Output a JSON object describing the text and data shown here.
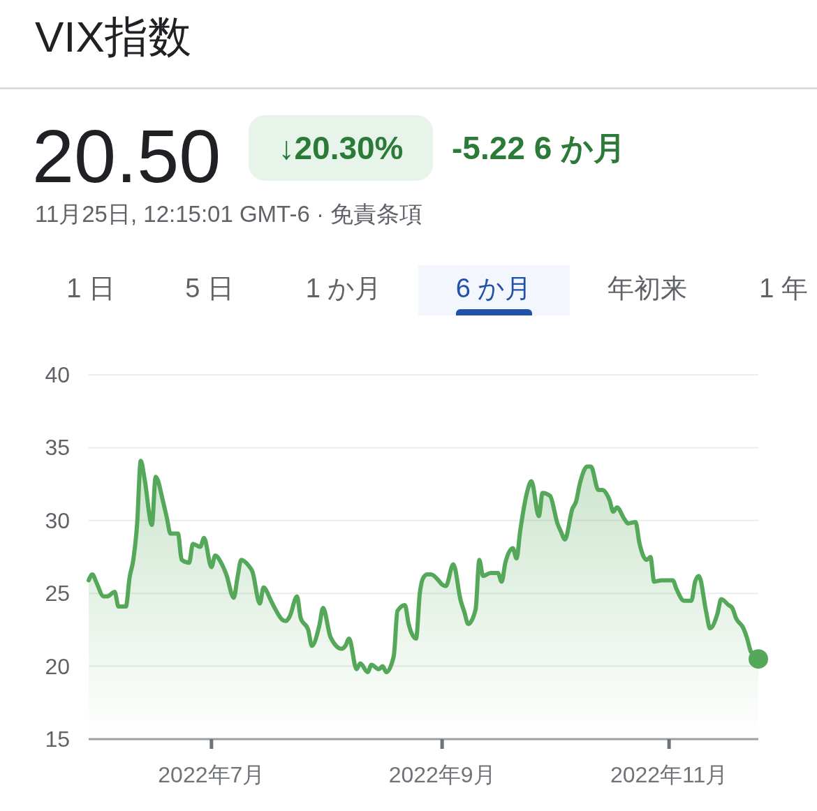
{
  "chart_data": {
    "type": "area",
    "title": "VIX指数",
    "subtitle": "11月25日, 12:15:01 GMT-6 · 免責条項",
    "annotations": [
      "20.50",
      "↓20.30%",
      "-5.22 6 か月",
      "1 日",
      "5 日",
      "1 か月",
      "6 か月",
      "年初来",
      "1 年"
    ],
    "xlim": [
      "2022-05-29",
      "2022-11-25"
    ],
    "xticks": [
      {
        "value": "2022-07-01",
        "label": "2022年7月"
      },
      {
        "value": "2022-09-01",
        "label": "2022年9月"
      },
      {
        "value": "2022-11-01",
        "label": "2022年11月"
      }
    ],
    "ylim": [
      15,
      40
    ],
    "yticks": [
      15,
      20,
      25,
      30,
      35,
      40
    ],
    "grid": "y",
    "series": [
      {
        "color": "#55a85a",
        "x": [
          "2022-05-29",
          "2022-05-30",
          "2022-05-31",
          "2022-06-02",
          "2022-06-03",
          "2022-06-05",
          "2022-06-06",
          "2022-06-08",
          "2022-06-09",
          "2022-06-10",
          "2022-06-11",
          "2022-06-12",
          "2022-06-13",
          "2022-06-15",
          "2022-06-16",
          "2022-06-18",
          "2022-06-19",
          "2022-06-20",
          "2022-06-22",
          "2022-06-23",
          "2022-06-25",
          "2022-06-26",
          "2022-06-28",
          "2022-06-29",
          "2022-07-01",
          "2022-07-02",
          "2022-07-04",
          "2022-07-05",
          "2022-07-07",
          "2022-07-08",
          "2022-07-09",
          "2022-07-11",
          "2022-07-12",
          "2022-07-14",
          "2022-07-15",
          "2022-07-17",
          "2022-07-18",
          "2022-07-20",
          "2022-07-21",
          "2022-07-22",
          "2022-07-24",
          "2022-07-25",
          "2022-07-27",
          "2022-07-28",
          "2022-07-30",
          "2022-07-31",
          "2022-08-02",
          "2022-08-05",
          "2022-08-06",
          "2022-08-07",
          "2022-08-09",
          "2022-08-10",
          "2022-08-12",
          "2022-08-13",
          "2022-08-15",
          "2022-08-16",
          "2022-08-17",
          "2022-08-19",
          "2022-08-20",
          "2022-08-22",
          "2022-08-23",
          "2022-08-25",
          "2022-08-26",
          "2022-08-27",
          "2022-08-28",
          "2022-08-29",
          "2022-08-31",
          "2022-09-01",
          "2022-09-02",
          "2022-09-04",
          "2022-09-06",
          "2022-09-07",
          "2022-09-08",
          "2022-09-10",
          "2022-09-11",
          "2022-09-12",
          "2022-09-14",
          "2022-09-16",
          "2022-09-17",
          "2022-09-18",
          "2022-09-20",
          "2022-09-21",
          "2022-09-22",
          "2022-09-24",
          "2022-09-25",
          "2022-09-27",
          "2022-09-28",
          "2022-09-30",
          "2022-10-02",
          "2022-10-03",
          "2022-10-04",
          "2022-10-06",
          "2022-10-07",
          "2022-10-08",
          "2022-10-10",
          "2022-10-11",
          "2022-10-13",
          "2022-10-14",
          "2022-10-16",
          "2022-10-17",
          "2022-10-18",
          "2022-10-20",
          "2022-10-21",
          "2022-10-23",
          "2022-10-24",
          "2022-10-26",
          "2022-10-27",
          "2022-10-28",
          "2022-10-30",
          "2022-11-01",
          "2022-11-02",
          "2022-11-03",
          "2022-11-05",
          "2022-11-07",
          "2022-11-08",
          "2022-11-09",
          "2022-11-11",
          "2022-11-12",
          "2022-11-14",
          "2022-11-15",
          "2022-11-17",
          "2022-11-18",
          "2022-11-19",
          "2022-11-21",
          "2022-11-22",
          "2022-11-23",
          "2022-11-25"
        ],
        "values": [
          25.9,
          26.3,
          25.8,
          24.8,
          24.8,
          25.1,
          24.1,
          24.1,
          26.1,
          27.3,
          29.7,
          34.1,
          32.9,
          29.7,
          33.0,
          31.3,
          30.2,
          29.1,
          29.1,
          27.3,
          27.1,
          28.4,
          28.2,
          28.8,
          26.8,
          27.6,
          26.9,
          26.3,
          24.7,
          26.1,
          27.3,
          26.9,
          26.5,
          24.3,
          25.4,
          24.5,
          24.0,
          23.2,
          23.1,
          23.4,
          24.8,
          23.3,
          22.5,
          21.4,
          22.8,
          24.0,
          22.0,
          21.2,
          21.4,
          21.9,
          19.8,
          20.2,
          19.6,
          20.1,
          19.8,
          20.0,
          19.6,
          20.7,
          23.8,
          24.2,
          22.9,
          21.9,
          25.0,
          26.1,
          26.3,
          26.3,
          25.9,
          25.6,
          25.5,
          27.0,
          24.5,
          23.7,
          22.9,
          23.9,
          27.3,
          26.2,
          26.4,
          26.4,
          25.8,
          27.1,
          28.1,
          27.4,
          29.3,
          32.1,
          32.7,
          30.3,
          31.9,
          31.7,
          29.8,
          29.2,
          28.7,
          30.8,
          31.3,
          32.5,
          33.7,
          33.7,
          32.1,
          32.1,
          31.4,
          30.6,
          30.9,
          30.1,
          29.8,
          29.9,
          28.5,
          27.3,
          27.5,
          25.8,
          25.9,
          25.9,
          25.9,
          25.3,
          24.5,
          24.5,
          25.8,
          26.2,
          23.7,
          22.6,
          23.6,
          24.6,
          24.2,
          24.0,
          23.3,
          22.6,
          21.9,
          21.0,
          20.5
        ]
      },
      {
        "type": "scatter",
        "color": "#55a85a",
        "x": [
          "2022-11-25"
        ],
        "values": [
          20.5
        ]
      }
    ]
  }
}
